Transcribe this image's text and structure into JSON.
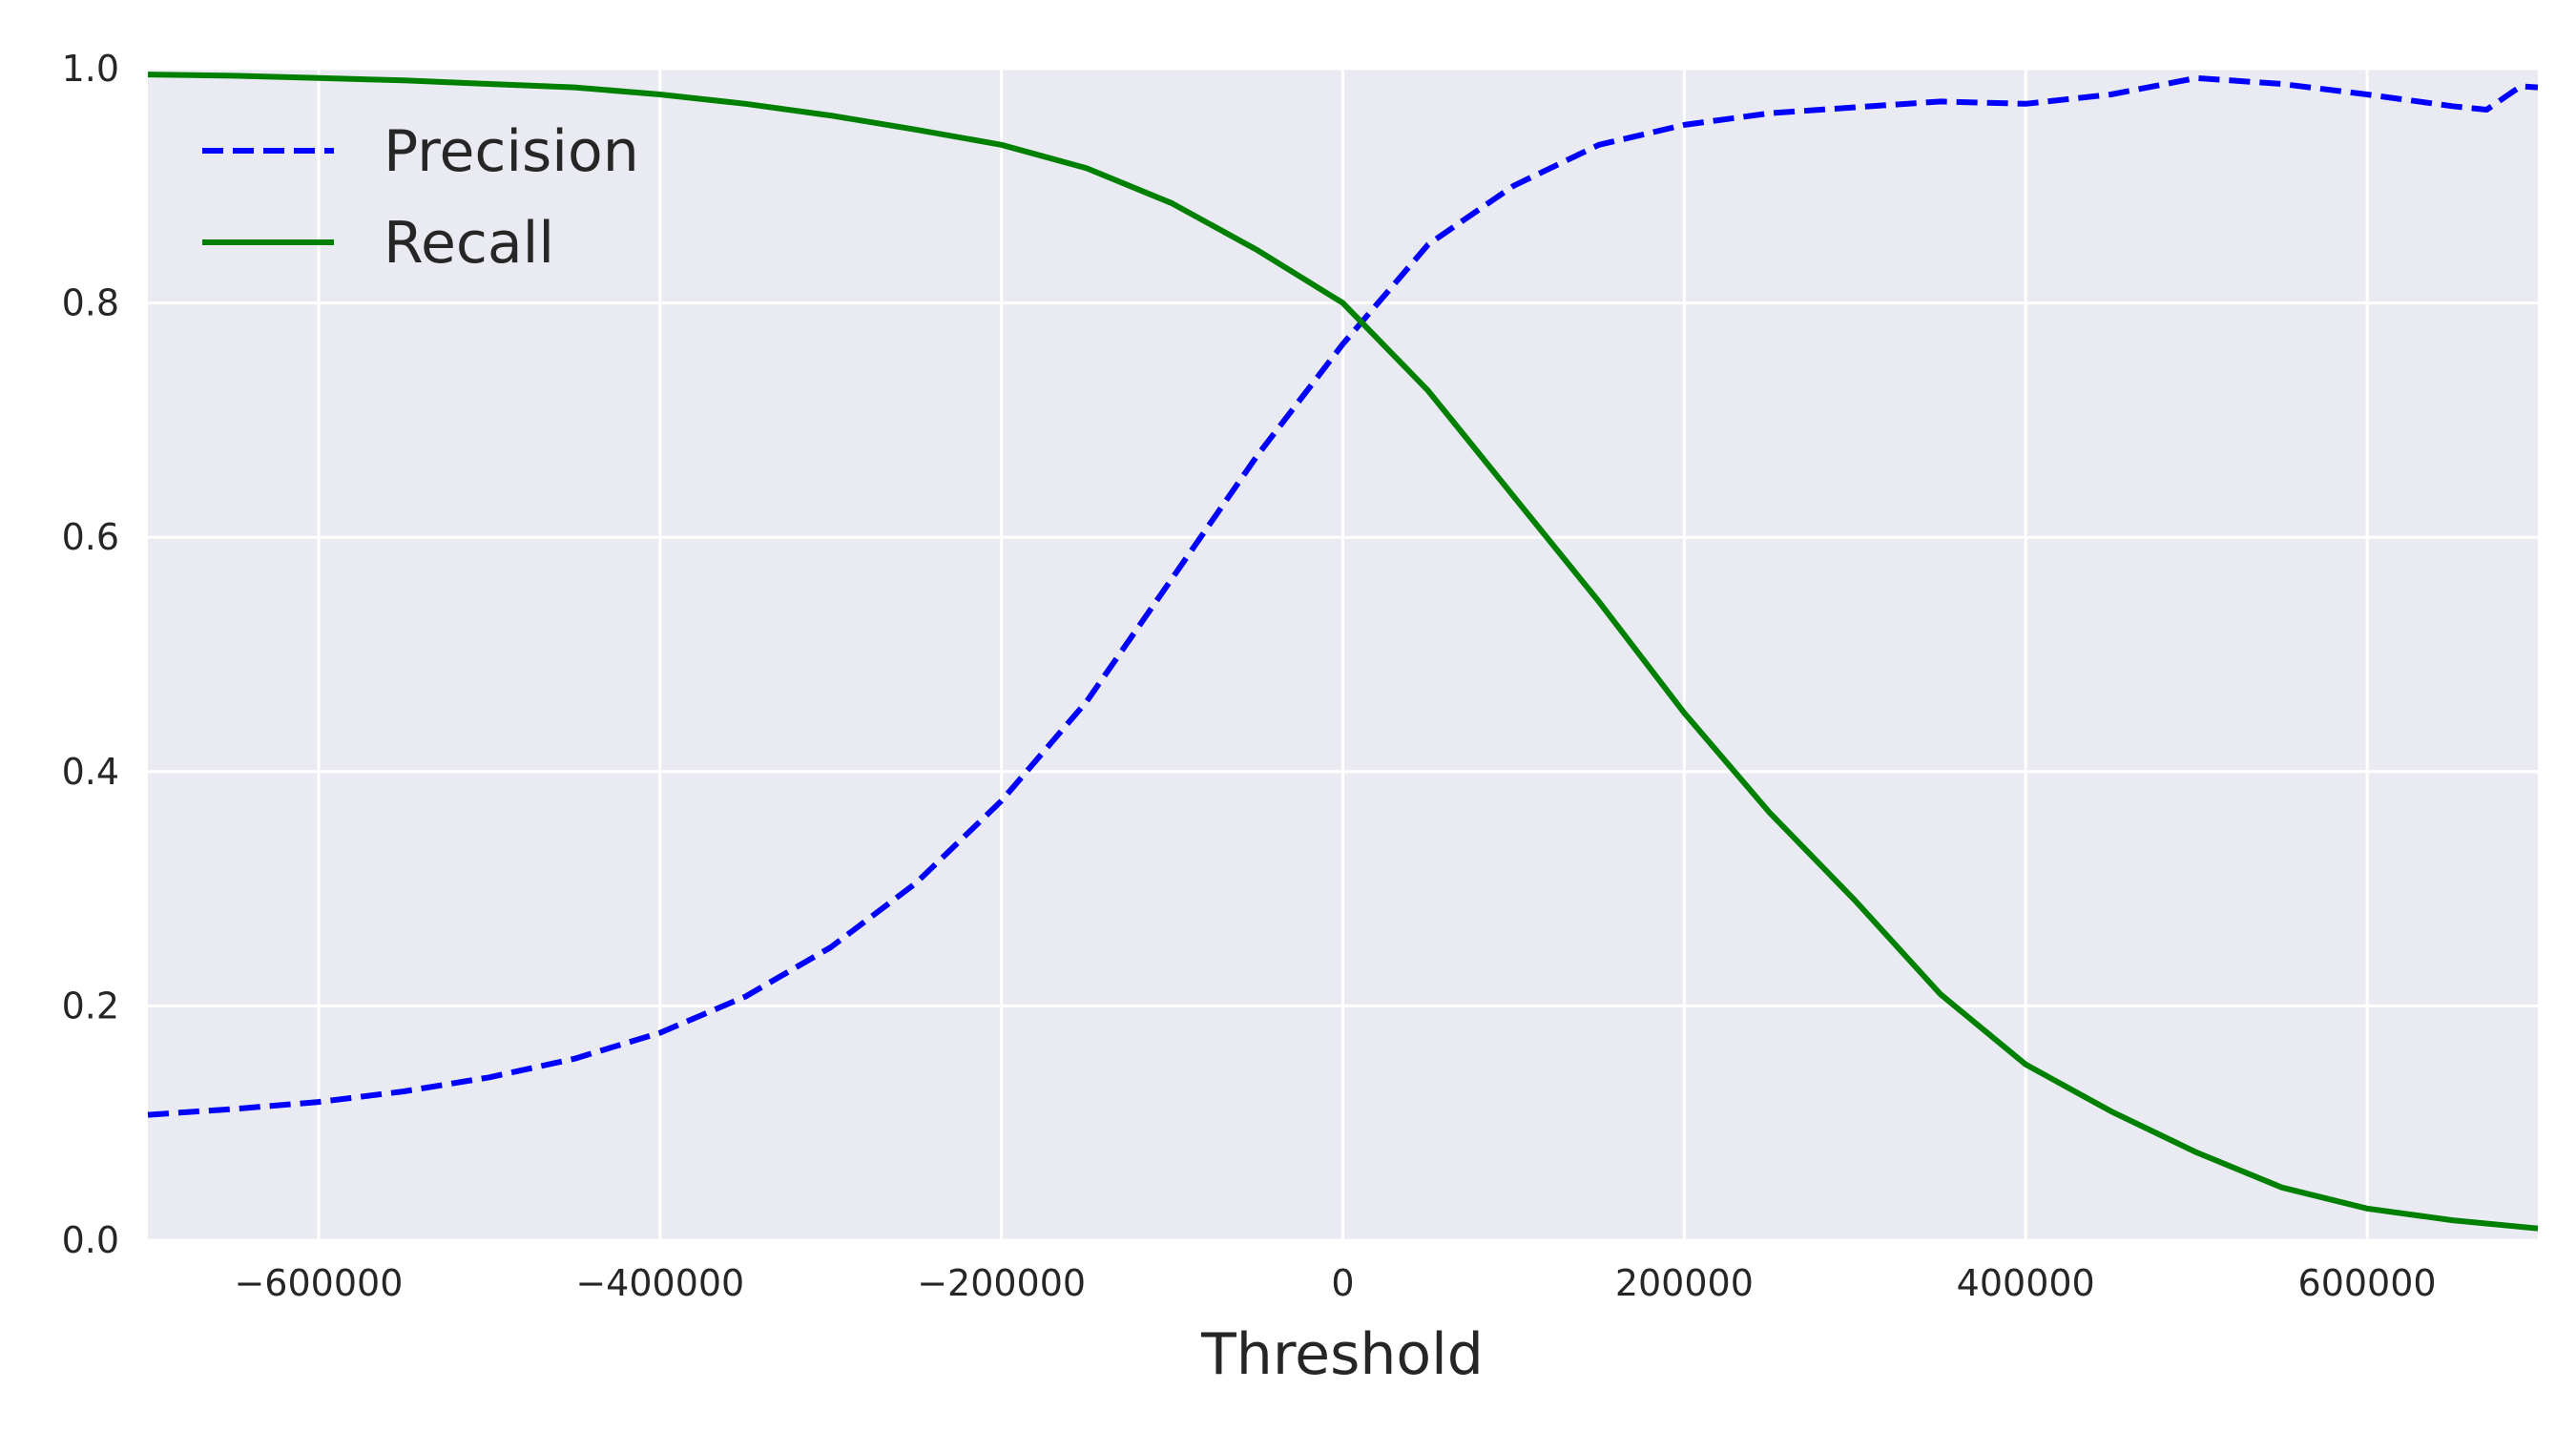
{
  "chart_data": {
    "type": "line",
    "title": "",
    "xlabel": "Threshold",
    "ylabel": "",
    "xlim": [
      -700000,
      700000
    ],
    "ylim": [
      0,
      1
    ],
    "grid": true,
    "legend_position": "top-left",
    "colors": {
      "plot_background": "#eaeaf2",
      "grid": "#ffffff",
      "precision": "#0000ff",
      "recall": "#008000"
    },
    "x_ticks": [
      {
        "value": -600000,
        "label": "−600000"
      },
      {
        "value": -400000,
        "label": "−400000"
      },
      {
        "value": -200000,
        "label": "−200000"
      },
      {
        "value": 0,
        "label": "0"
      },
      {
        "value": 200000,
        "label": "200000"
      },
      {
        "value": 400000,
        "label": "400000"
      },
      {
        "value": 600000,
        "label": "600000"
      }
    ],
    "y_ticks": [
      {
        "value": 0.0,
        "label": "0.0"
      },
      {
        "value": 0.2,
        "label": "0.2"
      },
      {
        "value": 0.4,
        "label": "0.4"
      },
      {
        "value": 0.6,
        "label": "0.6"
      },
      {
        "value": 0.8,
        "label": "0.8"
      },
      {
        "value": 1.0,
        "label": "1.0"
      }
    ],
    "series": [
      {
        "name": "Precision",
        "style": "dashed",
        "color": "#0000ff",
        "x": [
          -700000,
          -650000,
          -600000,
          -550000,
          -500000,
          -450000,
          -400000,
          -350000,
          -300000,
          -250000,
          -200000,
          -150000,
          -100000,
          -50000,
          0,
          50000,
          100000,
          150000,
          200000,
          250000,
          300000,
          350000,
          400000,
          450000,
          500000,
          550000,
          600000,
          650000,
          670000,
          680000,
          690000,
          700000
        ],
        "y": [
          0.107,
          0.112,
          0.118,
          0.127,
          0.139,
          0.155,
          0.177,
          0.208,
          0.25,
          0.305,
          0.375,
          0.46,
          0.565,
          0.67,
          0.765,
          0.85,
          0.9,
          0.935,
          0.952,
          0.962,
          0.967,
          0.972,
          0.97,
          0.978,
          0.992,
          0.987,
          0.978,
          0.968,
          0.965,
          0.975,
          0.985,
          0.984
        ]
      },
      {
        "name": "Recall",
        "style": "solid",
        "color": "#008000",
        "x": [
          -700000,
          -650000,
          -600000,
          -550000,
          -500000,
          -450000,
          -400000,
          -350000,
          -300000,
          -250000,
          -200000,
          -150000,
          -100000,
          -50000,
          0,
          50000,
          100000,
          150000,
          200000,
          250000,
          300000,
          350000,
          400000,
          450000,
          500000,
          550000,
          600000,
          650000,
          700000
        ],
        "y": [
          0.995,
          0.994,
          0.992,
          0.99,
          0.987,
          0.984,
          0.978,
          0.97,
          0.96,
          0.948,
          0.935,
          0.915,
          0.885,
          0.845,
          0.8,
          0.725,
          0.635,
          0.545,
          0.45,
          0.365,
          0.29,
          0.21,
          0.15,
          0.11,
          0.075,
          0.045,
          0.027,
          0.017,
          0.01
        ]
      }
    ]
  }
}
